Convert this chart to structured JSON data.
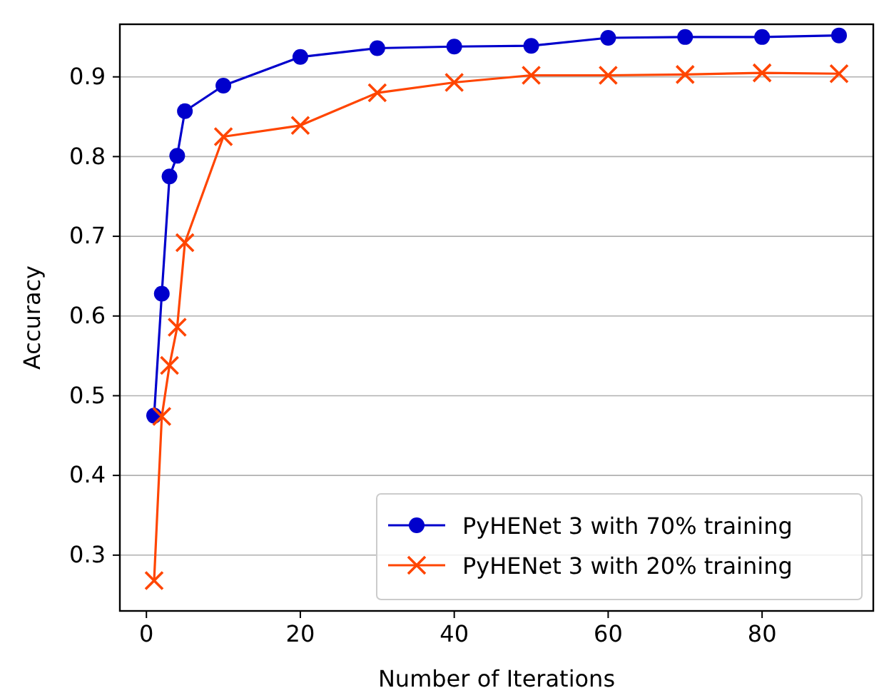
{
  "chart_data": {
    "type": "line",
    "xlabel": "Number of Iterations",
    "ylabel": "Accuracy",
    "x": [
      1,
      2,
      3,
      4,
      5,
      10,
      20,
      30,
      40,
      50,
      60,
      70,
      80,
      90
    ],
    "series": [
      {
        "name": "PyHENet 3 with 70% training",
        "color": "#0000cc",
        "marker": "circle",
        "values": [
          0.475,
          0.628,
          0.775,
          0.801,
          0.857,
          0.889,
          0.925,
          0.936,
          0.938,
          0.939,
          0.949,
          0.95,
          0.95,
          0.952
        ]
      },
      {
        "name": "PyHENet 3 with 20% training",
        "color": "#ff4500",
        "marker": "cross",
        "values": [
          0.268,
          0.474,
          0.538,
          0.586,
          0.692,
          0.825,
          0.839,
          0.88,
          0.893,
          0.902,
          0.902,
          0.903,
          0.905,
          0.904
        ]
      }
    ],
    "xlim": [
      -3.45,
      94.45
    ],
    "xticks": [
      0,
      20,
      40,
      60,
      80
    ],
    "ylim": [
      0.23,
      0.966
    ],
    "yticks": [
      0.3,
      0.4,
      0.5,
      0.6,
      0.7,
      0.8,
      0.9
    ],
    "grid": "y",
    "legend": "bottom right",
    "line_style": "solid"
  }
}
